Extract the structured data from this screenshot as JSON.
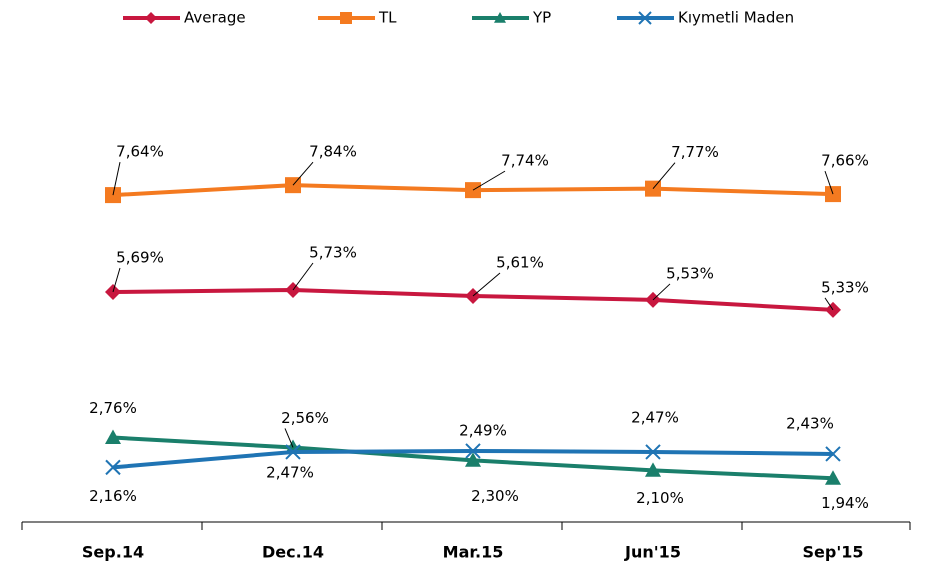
{
  "chart_data": {
    "type": "line",
    "categories": [
      "Sep.14",
      "Dec.14",
      "Mar.15",
      "Jun'15",
      "Sep'15"
    ],
    "series": [
      {
        "name": "Average",
        "color": "#c8173f",
        "marker": "diamond",
        "values": [
          5.69,
          5.73,
          5.61,
          5.53,
          5.33
        ],
        "value_labels": [
          "5,69%",
          "5,73%",
          "5,61%",
          "5,53%",
          "5,33%"
        ]
      },
      {
        "name": "TL",
        "color": "#f47a20",
        "marker": "square",
        "values": [
          7.64,
          7.84,
          7.74,
          7.77,
          7.66
        ],
        "value_labels": [
          "7,64%",
          "7,84%",
          "7,74%",
          "7,77%",
          "7,66%"
        ]
      },
      {
        "name": "YP",
        "color": "#1a7f6b",
        "marker": "triangle",
        "values": [
          2.76,
          2.56,
          2.3,
          2.1,
          1.94
        ],
        "value_labels": [
          "2,76%",
          "2,56%",
          "2,30%",
          "2,10%",
          "1,94%"
        ]
      },
      {
        "name": "Kıymetli Maden",
        "color": "#1f74b4",
        "marker": "x",
        "values": [
          2.16,
          2.47,
          2.49,
          2.47,
          2.43
        ],
        "value_labels": [
          "2,16%",
          "2,47%",
          "2,49%",
          "2,47%",
          "2,43%"
        ]
      }
    ],
    "ylim": [
      1,
      10.5
    ],
    "legend": "top"
  }
}
